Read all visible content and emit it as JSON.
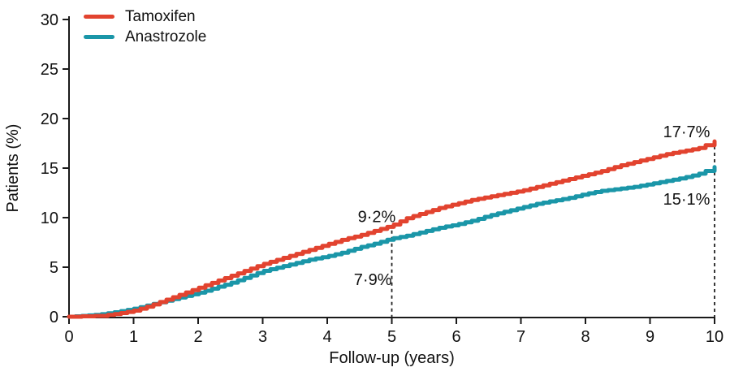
{
  "chart_data": {
    "type": "line",
    "title": "",
    "xlabel": "Follow-up (years)",
    "ylabel": "Patients (%)",
    "xlim": [
      0,
      10
    ],
    "ylim": [
      0,
      30
    ],
    "xticks": [
      0,
      1,
      2,
      3,
      4,
      5,
      6,
      7,
      8,
      9,
      10
    ],
    "yticks": [
      0,
      5,
      10,
      15,
      20,
      25,
      30
    ],
    "grid": false,
    "legend_position": "top-left",
    "line_style": "step",
    "series": [
      {
        "name": "Tamoxifen",
        "color": "#e2432f",
        "x": [
          0,
          0.25,
          0.5,
          0.75,
          1,
          1.25,
          1.5,
          1.75,
          2,
          2.25,
          2.5,
          2.75,
          3,
          3.25,
          3.5,
          3.75,
          4,
          4.25,
          4.5,
          4.75,
          5,
          5.25,
          5.5,
          5.75,
          6,
          6.25,
          6.5,
          6.75,
          7,
          7.25,
          7.5,
          7.75,
          8,
          8.25,
          8.5,
          8.75,
          9,
          9.25,
          9.5,
          9.75,
          10
        ],
        "y": [
          0,
          0.05,
          0.1,
          0.3,
          0.6,
          1.1,
          1.7,
          2.3,
          2.9,
          3.5,
          4.1,
          4.7,
          5.3,
          5.8,
          6.3,
          6.8,
          7.3,
          7.8,
          8.2,
          8.7,
          9.2,
          10.0,
          10.5,
          11.0,
          11.4,
          11.8,
          12.1,
          12.4,
          12.7,
          13.1,
          13.5,
          13.9,
          14.3,
          14.7,
          15.2,
          15.6,
          16.0,
          16.4,
          16.7,
          17.0,
          17.7
        ],
        "value_at_5y": "9·2%",
        "value_at_10y": "17·7%"
      },
      {
        "name": "Anastrozole",
        "color": "#1a96a8",
        "x": [
          0,
          0.25,
          0.5,
          0.75,
          1,
          1.25,
          1.5,
          1.75,
          2,
          2.25,
          2.5,
          2.75,
          3,
          3.25,
          3.5,
          3.75,
          4,
          4.25,
          4.5,
          4.75,
          5,
          5.25,
          5.5,
          5.75,
          6,
          6.25,
          6.5,
          6.75,
          7,
          7.25,
          7.5,
          7.75,
          8,
          8.25,
          8.5,
          8.75,
          9,
          9.25,
          9.5,
          9.75,
          10
        ],
        "y": [
          0,
          0.1,
          0.25,
          0.5,
          0.8,
          1.2,
          1.6,
          2.0,
          2.4,
          2.9,
          3.4,
          4.0,
          4.6,
          5.0,
          5.4,
          5.8,
          6.1,
          6.5,
          7.0,
          7.4,
          7.9,
          8.2,
          8.6,
          9.0,
          9.3,
          9.7,
          10.2,
          10.6,
          11.0,
          11.4,
          11.7,
          12.0,
          12.4,
          12.7,
          12.9,
          13.1,
          13.4,
          13.7,
          14.0,
          14.4,
          15.1
        ],
        "value_at_5y": "7·9%",
        "value_at_10y": "15·1%"
      }
    ],
    "annotations": [
      {
        "text": "9·2%",
        "year": 5.06,
        "pct": 9.55,
        "anchor": "end"
      },
      {
        "text": "7·9%",
        "year": 5.0,
        "pct": 3.2,
        "anchor": "end"
      },
      {
        "text": "17·7%",
        "year": 9.93,
        "pct": 18.1,
        "anchor": "end"
      },
      {
        "text": "15·1%",
        "year": 9.93,
        "pct": 11.3,
        "anchor": "end"
      }
    ],
    "dashed_guides": [
      {
        "year": 5,
        "from_pct": 9.2,
        "to_pct": 0
      },
      {
        "year": 10,
        "from_pct": 17.7,
        "to_pct": 0
      }
    ]
  },
  "colors": {
    "axis": "#1a1a1a",
    "text": "#111111",
    "guide": "#222222",
    "background": "#ffffff"
  }
}
